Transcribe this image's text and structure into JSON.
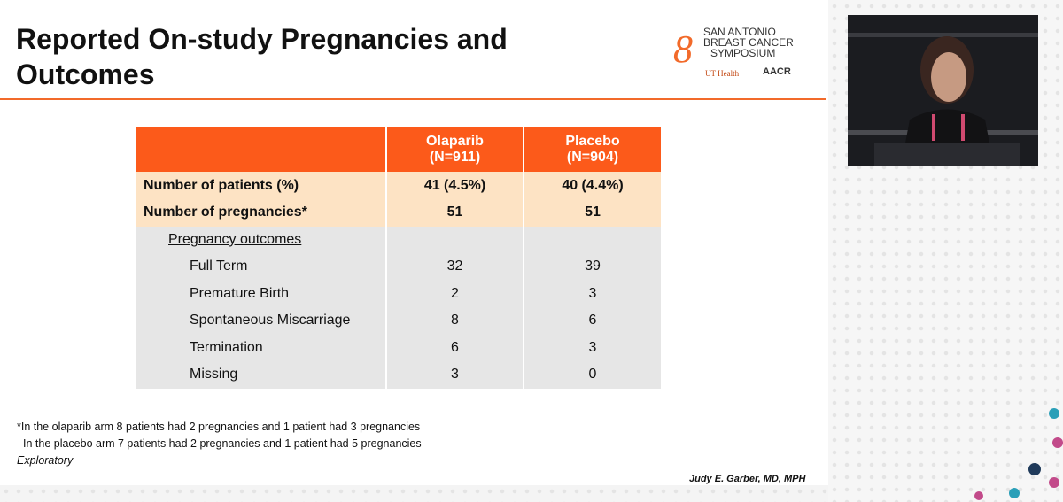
{
  "slide": {
    "title_lines": [
      "Reported On-study Pregnancies and",
      "Outcomes"
    ],
    "logo": {
      "lines": [
        "SAN ANTONIO",
        "BREAST CANCER",
        "SYMPOSIUM"
      ],
      "partner1": "UT Health",
      "partner2": "AACR"
    },
    "table": {
      "header": [
        "Olaparib\n(N=911)",
        "Placebo\n(N=904)"
      ],
      "rows": [
        {
          "label": "Number of patients (%)",
          "values": [
            "41 (4.5%)",
            "40 (4.4%)"
          ],
          "style": "bold"
        },
        {
          "label": "Number of pregnancies*",
          "values": [
            "51",
            "51"
          ],
          "style": "bold"
        },
        {
          "label": "Pregnancy outcomes",
          "style": "sub"
        },
        {
          "label": "Full Term",
          "values": [
            "32",
            "39"
          ],
          "style": "item"
        },
        {
          "label": "Premature Birth",
          "values": [
            "2",
            "3"
          ],
          "style": "item"
        },
        {
          "label": "Spontaneous Miscarriage",
          "values": [
            "8",
            "6"
          ],
          "style": "item"
        },
        {
          "label": "Termination",
          "values": [
            "6",
            "3"
          ],
          "style": "item"
        },
        {
          "label": "Missing",
          "values": [
            "3",
            "0"
          ],
          "style": "item"
        }
      ]
    },
    "footnotes": [
      "*In the olaparib arm 8 patients had 2 pregnancies and 1 patient had 3 pregnancies",
      "In the placebo arm 7 patients had 2 pregnancies and 1 patient had 5 pregnancies"
    ],
    "exploratory": "Exploratory",
    "author": "Judy E. Garber, MD, MPH"
  }
}
